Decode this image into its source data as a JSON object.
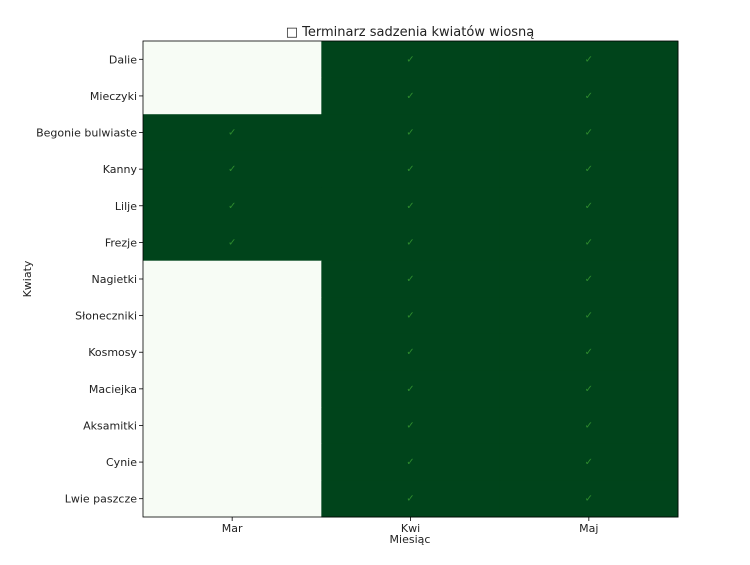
{
  "chart_data": {
    "type": "heatmap",
    "title": "□ Terminarz sadzenia kwiatów wiosną",
    "xlabel": "Miesiąc",
    "ylabel": "Kwiaty",
    "x_categories": [
      "Mar",
      "Kwi",
      "Maj"
    ],
    "y_categories": [
      "Dalie",
      "Mieczyki",
      "Begonie bulwiaste",
      "Kanny",
      "Lilje",
      "Frezje",
      "Nagietki",
      "Słoneczniki",
      "Kosmosy",
      "Maciejka",
      "Aksamitki",
      "Cynie",
      "Lwie paszcze"
    ],
    "values": [
      [
        0,
        1,
        1
      ],
      [
        0,
        1,
        1
      ],
      [
        1,
        1,
        1
      ],
      [
        1,
        1,
        1
      ],
      [
        1,
        1,
        1
      ],
      [
        1,
        1,
        1
      ],
      [
        0,
        1,
        1
      ],
      [
        0,
        1,
        1
      ],
      [
        0,
        1,
        1
      ],
      [
        0,
        1,
        1
      ],
      [
        0,
        1,
        1
      ],
      [
        0,
        1,
        1
      ],
      [
        0,
        1,
        1
      ]
    ],
    "cell_text": "✓",
    "colors": {
      "on": "#00441b",
      "off": "#f7fcf5",
      "mark": "#2e8b2e"
    },
    "grid": false,
    "legend": "none"
  }
}
